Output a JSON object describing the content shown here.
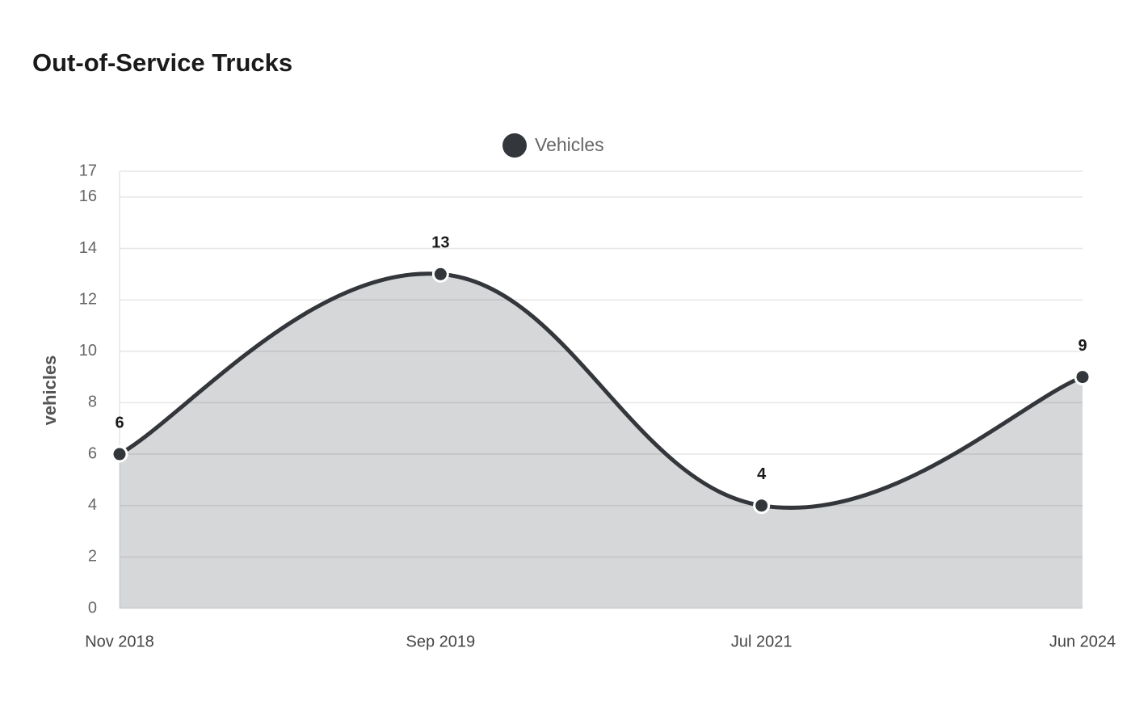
{
  "chart_data": {
    "type": "area",
    "title": "Out-of-Service Trucks",
    "y_label": "vehicles",
    "categories": [
      "Nov 2018",
      "Sep 2019",
      "Jul 2021",
      "Jun 2024"
    ],
    "series": [
      {
        "name": "Vehicles",
        "color": "#33363a",
        "values": [
          6,
          13,
          4,
          9
        ]
      }
    ],
    "ylim": [
      0,
      17
    ],
    "yticks": [
      0,
      2,
      4,
      6,
      8,
      10,
      12,
      14,
      16,
      17
    ],
    "grid": true,
    "legend": "top",
    "data_labels": true
  }
}
